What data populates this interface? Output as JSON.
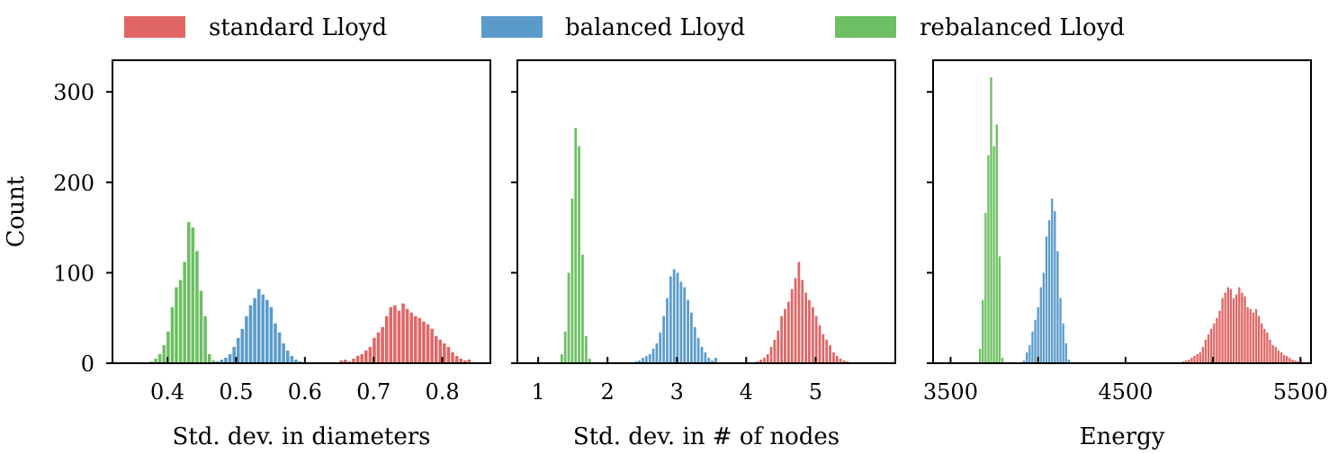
{
  "legend": [
    {
      "label": "standard Lloyd",
      "color": "#e06666"
    },
    {
      "label": "balanced Lloyd",
      "color": "#5b9bcc"
    },
    {
      "label": "rebalanced Lloyd",
      "color": "#6cbf62"
    }
  ],
  "chart_data": [
    {
      "type": "bar",
      "xlabel": "Std. dev. in diameters",
      "ylabel": "Count",
      "xlim": [
        0.32,
        0.87
      ],
      "ylim": [
        0,
        335
      ],
      "xticks": [
        0.4,
        0.5,
        0.6,
        0.7,
        0.8
      ],
      "xtick_labels": [
        "0.4",
        "0.5",
        "0.6",
        "0.7",
        "0.8"
      ],
      "yticks": [
        0,
        100,
        200,
        300
      ],
      "ytick_labels": [
        "0",
        "100",
        "200",
        "300"
      ],
      "series": [
        {
          "name": "standard Lloyd",
          "color": "#e06666",
          "bin_width": 0.0055,
          "x": [
            0.653,
            0.659,
            0.665,
            0.671,
            0.677,
            0.683,
            0.689,
            0.695,
            0.701,
            0.707,
            0.713,
            0.719,
            0.725,
            0.731,
            0.737,
            0.743,
            0.749,
            0.755,
            0.761,
            0.767,
            0.773,
            0.779,
            0.785,
            0.791,
            0.797,
            0.803,
            0.809,
            0.815,
            0.821,
            0.827,
            0.833,
            0.839
          ],
          "values": [
            3,
            4,
            2,
            5,
            8,
            10,
            14,
            18,
            28,
            34,
            40,
            52,
            62,
            64,
            58,
            66,
            60,
            56,
            52,
            50,
            46,
            43,
            38,
            30,
            26,
            22,
            18,
            12,
            8,
            5,
            3,
            4
          ]
        },
        {
          "name": "balanced Lloyd",
          "color": "#5b9bcc",
          "bin_width": 0.0055,
          "x": [
            0.473,
            0.479,
            0.485,
            0.491,
            0.497,
            0.503,
            0.509,
            0.515,
            0.521,
            0.527,
            0.533,
            0.539,
            0.545,
            0.551,
            0.557,
            0.563,
            0.569,
            0.575,
            0.581,
            0.587,
            0.593,
            0.599,
            0.605
          ],
          "values": [
            2,
            4,
            6,
            10,
            18,
            28,
            38,
            52,
            64,
            72,
            82,
            76,
            70,
            62,
            44,
            34,
            22,
            14,
            8,
            4,
            2,
            1,
            1
          ]
        },
        {
          "name": "rebalanced Lloyd",
          "color": "#6cbf62",
          "bin_width": 0.0055,
          "x": [
            0.377,
            0.383,
            0.389,
            0.395,
            0.401,
            0.407,
            0.413,
            0.419,
            0.425,
            0.431,
            0.437,
            0.443,
            0.449,
            0.455,
            0.461,
            0.467
          ],
          "values": [
            2,
            5,
            10,
            20,
            35,
            62,
            84,
            92,
            112,
            156,
            150,
            124,
            80,
            52,
            10,
            3
          ]
        }
      ]
    },
    {
      "type": "bar",
      "xlabel": "Std. dev. in # of nodes",
      "ylabel": "",
      "xlim": [
        0.7,
        6.15
      ],
      "ylim": [
        0,
        335
      ],
      "xticks": [
        1,
        2,
        3,
        4,
        5
      ],
      "xtick_labels": [
        "1",
        "2",
        "3",
        "4",
        "5"
      ],
      "yticks": [
        0,
        100,
        200,
        300
      ],
      "ytick_labels": [
        "",
        "",
        "",
        ""
      ],
      "series": [
        {
          "name": "standard Lloyd",
          "color": "#e06666",
          "bin_width": 0.042,
          "x": [
            4.16,
            4.21,
            4.26,
            4.31,
            4.36,
            4.41,
            4.46,
            4.51,
            4.56,
            4.61,
            4.66,
            4.71,
            4.76,
            4.81,
            4.86,
            4.91,
            4.96,
            5.01,
            5.06,
            5.11,
            5.16,
            5.21,
            5.26,
            5.31,
            5.36,
            5.41,
            5.46
          ],
          "values": [
            2,
            4,
            6,
            10,
            18,
            26,
            36,
            52,
            60,
            68,
            82,
            94,
            112,
            92,
            78,
            70,
            62,
            52,
            42,
            32,
            26,
            20,
            12,
            8,
            5,
            3,
            2
          ]
        },
        {
          "name": "balanced Lloyd",
          "color": "#5b9bcc",
          "bin_width": 0.042,
          "x": [
            2.41,
            2.46,
            2.51,
            2.56,
            2.61,
            2.66,
            2.71,
            2.76,
            2.81,
            2.86,
            2.91,
            2.96,
            3.01,
            3.06,
            3.11,
            3.16,
            3.21,
            3.26,
            3.31,
            3.36,
            3.41,
            3.46,
            3.51,
            3.56
          ],
          "values": [
            2,
            3,
            6,
            8,
            10,
            16,
            22,
            34,
            52,
            72,
            96,
            104,
            100,
            90,
            84,
            70,
            56,
            40,
            28,
            18,
            12,
            6,
            3,
            6
          ]
        },
        {
          "name": "rebalanced Lloyd",
          "color": "#6cbf62",
          "bin_width": 0.042,
          "x": [
            1.34,
            1.39,
            1.44,
            1.49,
            1.54,
            1.59,
            1.64,
            1.69,
            1.74
          ],
          "values": [
            10,
            35,
            100,
            182,
            260,
            240,
            120,
            30,
            5
          ]
        }
      ]
    },
    {
      "type": "bar",
      "xlabel": "Energy",
      "ylabel": "",
      "xlim": [
        3400,
        5560
      ],
      "ylim": [
        0,
        335
      ],
      "xticks": [
        3500,
        4000,
        4500,
        5000,
        5500
      ],
      "xtick_labels": [
        "3500",
        "",
        "4500",
        "",
        "5500"
      ],
      "yticks": [
        0,
        100,
        200,
        300
      ],
      "ytick_labels": [
        "",
        "",
        "",
        ""
      ],
      "series": [
        {
          "name": "standard Lloyd",
          "color": "#e06666",
          "bin_width": 14,
          "x": [
            4830,
            4846,
            4862,
            4878,
            4894,
            4910,
            4926,
            4942,
            4958,
            4974,
            4990,
            5006,
            5022,
            5038,
            5054,
            5070,
            5086,
            5102,
            5118,
            5134,
            5150,
            5166,
            5182,
            5198,
            5214,
            5230,
            5246,
            5262,
            5278,
            5294,
            5310,
            5326,
            5342,
            5358,
            5374,
            5390,
            5406,
            5422,
            5438,
            5454,
            5470,
            5486,
            5502
          ],
          "values": [
            2,
            3,
            4,
            6,
            8,
            10,
            12,
            18,
            26,
            32,
            38,
            44,
            50,
            58,
            72,
            78,
            84,
            82,
            72,
            76,
            84,
            78,
            74,
            62,
            60,
            56,
            60,
            52,
            44,
            38,
            34,
            26,
            20,
            18,
            14,
            12,
            9,
            8,
            6,
            4,
            3,
            2,
            2
          ]
        },
        {
          "name": "balanced Lloyd",
          "color": "#5b9bcc",
          "bin_width": 14,
          "x": [
            3920,
            3936,
            3952,
            3968,
            3984,
            4000,
            4016,
            4032,
            4048,
            4064,
            4080,
            4096,
            4112,
            4128,
            4144,
            4160,
            4176,
            4192
          ],
          "values": [
            3,
            12,
            20,
            35,
            48,
            62,
            84,
            100,
            140,
            158,
            182,
            168,
            124,
            72,
            44,
            22,
            4,
            1
          ]
        },
        {
          "name": "rebalanced Lloyd",
          "color": "#6cbf62",
          "bin_width": 14,
          "x": [
            3668,
            3684,
            3700,
            3716,
            3732,
            3748,
            3764,
            3780,
            3796,
            3812
          ],
          "values": [
            16,
            70,
            166,
            230,
            316,
            240,
            264,
            118,
            6,
            1
          ]
        }
      ]
    }
  ]
}
